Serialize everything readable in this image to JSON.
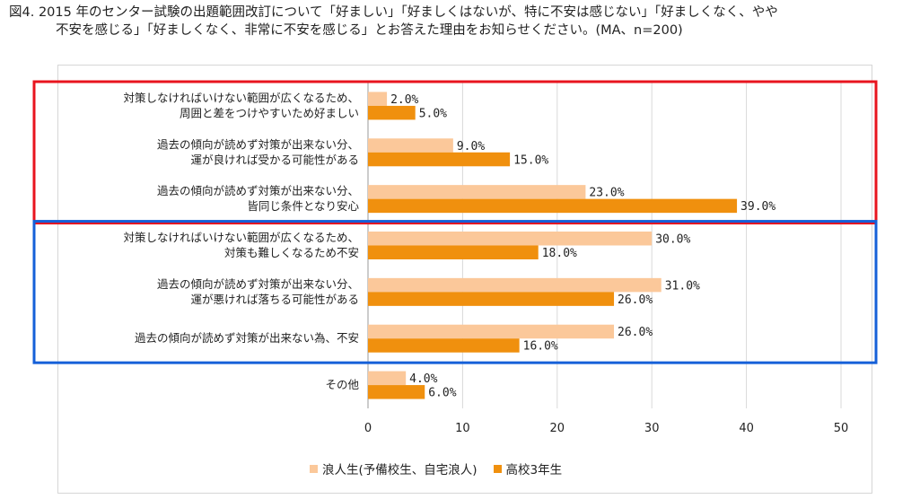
{
  "title": {
    "line1": "図4.  2015 年のセンター試験の出題範囲改訂について「好ましい」「好ましくはないが、特に不安は感じない」「好ましくなく、やや",
    "line2": "不安を感じる」「好ましくなく、非常に不安を感じる」とお答えた理由をお知らせください。(MA、n=200)"
  },
  "colors": {
    "series1": "#fbc89a",
    "series2": "#f0900e",
    "red_box": "#e8141e",
    "blue_box": "#1560d8",
    "grid": "#d9d9d9"
  },
  "chart_data": {
    "type": "bar",
    "orientation": "horizontal",
    "categories": [
      [
        "対策しなければいけない範囲が広くなるため、",
        "周囲と差をつけやすいため好ましい"
      ],
      [
        "過去の傾向が読めず対策が出来ない分、",
        "運が良ければ受かる可能性がある"
      ],
      [
        "過去の傾向が読めず対策が出来ない分、",
        "皆同じ条件となり安心"
      ],
      [
        "対策しなければいけない範囲が広くなるため、",
        "対策も難しくなるため不安"
      ],
      [
        "過去の傾向が読めず対策が出来ない分、",
        "運が悪ければ落ちる可能性がある"
      ],
      [
        "過去の傾向が読めず対策が出来ない為、不安"
      ],
      [
        "その他"
      ]
    ],
    "series": [
      {
        "name": "浪人生(予備校生、自宅浪人)",
        "values": [
          2.0,
          9.0,
          23.0,
          30.0,
          31.0,
          26.0,
          4.0
        ],
        "labels": [
          "2.0%",
          "9.0%",
          "23.0%",
          "30.0%",
          "31.0%",
          "26.0%",
          "4.0%"
        ]
      },
      {
        "name": "高校3年生",
        "values": [
          5.0,
          15.0,
          39.0,
          18.0,
          26.0,
          16.0,
          6.0
        ],
        "labels": [
          "5.0%",
          "15.0%",
          "39.0%",
          "18.0%",
          "26.0%",
          "16.0%",
          "6.0%"
        ]
      }
    ],
    "xlim": [
      0,
      50
    ],
    "xticks": [
      "0",
      "10",
      "20",
      "30",
      "40",
      "50"
    ],
    "grid": true,
    "legend_position": "bottom",
    "highlight_boxes": [
      {
        "color": "red",
        "categories": [
          0,
          1,
          2
        ]
      },
      {
        "color": "blue",
        "categories": [
          3,
          4,
          5
        ]
      }
    ]
  }
}
